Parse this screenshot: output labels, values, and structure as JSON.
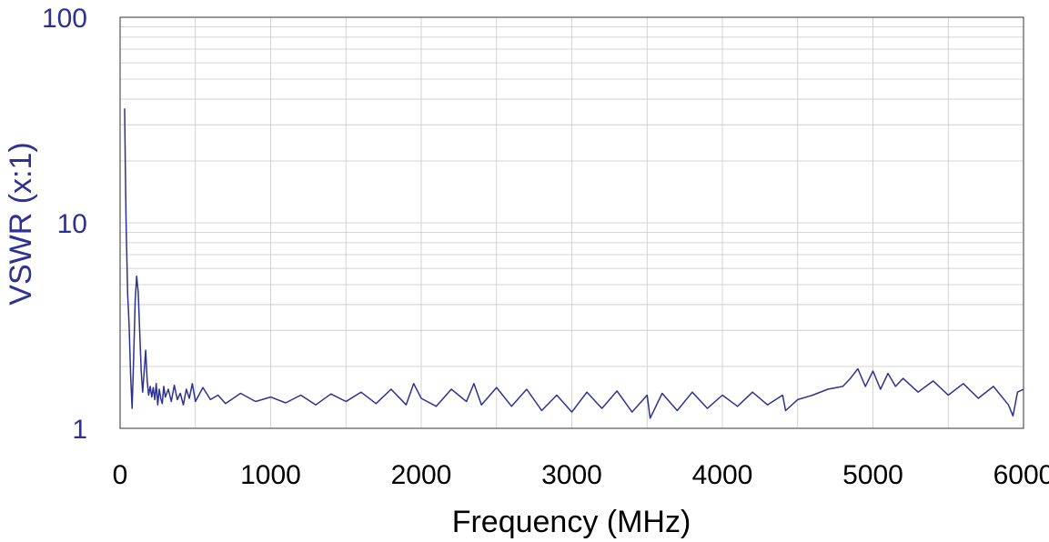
{
  "chart_data": {
    "type": "line",
    "title": "",
    "xlabel": "Frequency (MHz)",
    "ylabel": "VSWR (x:1)",
    "xlim": [
      0,
      6000
    ],
    "ylim": [
      1,
      100
    ],
    "y_scale": "log",
    "grid": true,
    "legend": "none",
    "x_ticks": [
      "0",
      "1000",
      "2000",
      "3000",
      "4000",
      "5000",
      "6000"
    ],
    "y_ticks": [
      "1",
      "10",
      "100"
    ],
    "colors": {
      "line": "#2e3192",
      "ytick_text": "#2e3192",
      "ylabel_text": "#2e3192",
      "xtick_text": "#000000",
      "xlabel_text": "#000000",
      "grid": "#c8c8c8",
      "frame": "#555555"
    },
    "series": [
      {
        "x": [
          30,
          35,
          40,
          50,
          60,
          70,
          80,
          90,
          100,
          110,
          120,
          130,
          140,
          150,
          160,
          170,
          180,
          190,
          200,
          210,
          220,
          230,
          240,
          250,
          260,
          270,
          280,
          290,
          300,
          320,
          340,
          360,
          380,
          400,
          420,
          440,
          460,
          480,
          500,
          550,
          600,
          650,
          700,
          800,
          900,
          1000,
          1100,
          1200,
          1300,
          1400,
          1500,
          1600,
          1700,
          1800,
          1900,
          1950,
          2000,
          2100,
          2200,
          2300,
          2350,
          2400,
          2500,
          2600,
          2700,
          2800,
          2900,
          3000,
          3100,
          3200,
          3300,
          3400,
          3500,
          3520,
          3600,
          3700,
          3800,
          3900,
          4000,
          4100,
          4200,
          4300,
          4400,
          4420,
          4500,
          4600,
          4700,
          4800,
          4850,
          4900,
          4950,
          5000,
          5050,
          5100,
          5150,
          5200,
          5300,
          5400,
          5500,
          5600,
          5700,
          5800,
          5900,
          5930,
          5960,
          6000
        ],
        "y": [
          36,
          18,
          10,
          4.5,
          3.2,
          1.8,
          1.25,
          2.2,
          4.2,
          5.5,
          4.6,
          3.0,
          1.9,
          1.5,
          1.9,
          2.4,
          1.7,
          1.45,
          1.6,
          1.42,
          1.58,
          1.38,
          1.65,
          1.3,
          1.55,
          1.4,
          1.32,
          1.6,
          1.42,
          1.55,
          1.35,
          1.62,
          1.38,
          1.48,
          1.3,
          1.55,
          1.4,
          1.65,
          1.35,
          1.58,
          1.38,
          1.45,
          1.32,
          1.48,
          1.35,
          1.42,
          1.33,
          1.45,
          1.3,
          1.47,
          1.35,
          1.5,
          1.32,
          1.55,
          1.3,
          1.65,
          1.4,
          1.28,
          1.55,
          1.35,
          1.65,
          1.3,
          1.58,
          1.28,
          1.55,
          1.22,
          1.45,
          1.2,
          1.5,
          1.25,
          1.52,
          1.2,
          1.45,
          1.12,
          1.48,
          1.22,
          1.5,
          1.25,
          1.45,
          1.28,
          1.5,
          1.3,
          1.45,
          1.22,
          1.38,
          1.45,
          1.55,
          1.6,
          1.75,
          1.95,
          1.6,
          1.9,
          1.55,
          1.85,
          1.6,
          1.75,
          1.5,
          1.7,
          1.45,
          1.65,
          1.4,
          1.6,
          1.3,
          1.15,
          1.5,
          1.55
        ]
      }
    ]
  }
}
